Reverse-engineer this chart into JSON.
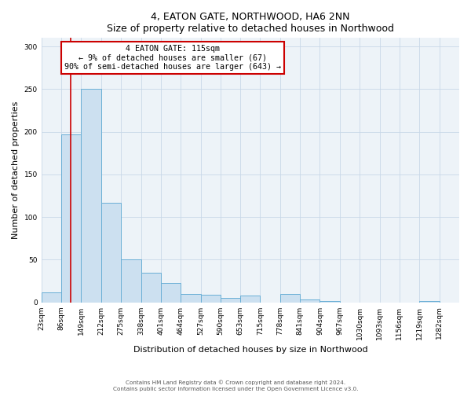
{
  "title": "4, EATON GATE, NORTHWOOD, HA6 2NN",
  "subtitle": "Size of property relative to detached houses in Northwood",
  "xlabel": "Distribution of detached houses by size in Northwood",
  "ylabel": "Number of detached properties",
  "bar_labels": [
    "23sqm",
    "86sqm",
    "149sqm",
    "212sqm",
    "275sqm",
    "338sqm",
    "401sqm",
    "464sqm",
    "527sqm",
    "590sqm",
    "653sqm",
    "715sqm",
    "778sqm",
    "841sqm",
    "904sqm",
    "967sqm",
    "1030sqm",
    "1093sqm",
    "1156sqm",
    "1219sqm",
    "1282sqm"
  ],
  "bar_values": [
    12,
    197,
    250,
    117,
    50,
    35,
    23,
    10,
    9,
    5,
    8,
    0,
    10,
    3,
    2,
    0,
    0,
    0,
    0,
    2,
    0
  ],
  "bar_color": "#cce0f0",
  "bar_edge_color": "#6aafd6",
  "property_line_x": 115,
  "property_line_label": "4 EATON GATE: 115sqm",
  "annotation_line1": "← 9% of detached houses are smaller (67)",
  "annotation_line2": "90% of semi-detached houses are larger (643) →",
  "annotation_box_color": "#cc0000",
  "ylim": [
    0,
    310
  ],
  "yticks": [
    0,
    50,
    100,
    150,
    200,
    250,
    300
  ],
  "footer1": "Contains HM Land Registry data © Crown copyright and database right 2024.",
  "footer2": "Contains public sector information licensed under the Open Government Licence v3.0.",
  "bin_edges": [
    23,
    86,
    149,
    212,
    275,
    338,
    401,
    464,
    527,
    590,
    653,
    715,
    778,
    841,
    904,
    967,
    1030,
    1093,
    1156,
    1219,
    1282,
    1345
  ],
  "fig_width": 6.0,
  "fig_height": 5.0,
  "dpi": 100
}
